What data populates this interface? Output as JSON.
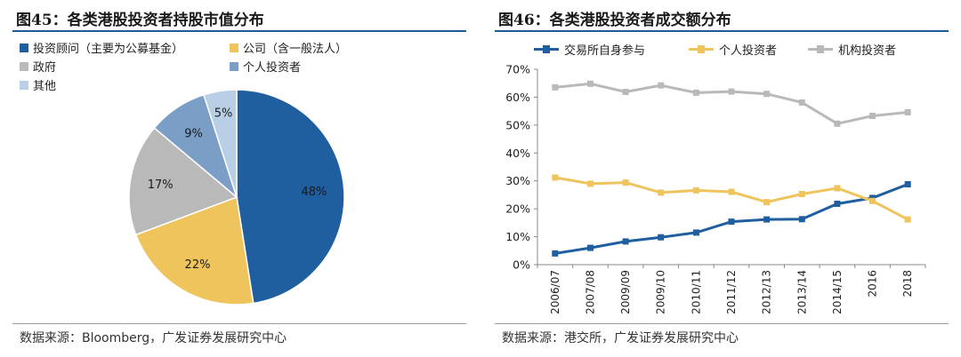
{
  "left": {
    "title": "图45：各类港股投资者持股市值分布",
    "source": "数据来源：Bloomberg，广发证券发展研究中心",
    "chart_data": {
      "type": "pie",
      "title": "各类港股投资者持股市值分布",
      "categories": [
        "投资顾问（主要为公募基金）",
        "公司（含一般法人）",
        "政府",
        "个人投资者",
        "其他"
      ],
      "values": [
        48,
        22,
        17,
        9,
        5
      ],
      "labels": [
        "48%",
        "22%",
        "17%",
        "9%",
        "5%"
      ],
      "colors": [
        "#1f5fa0",
        "#efc45d",
        "#b9b9b9",
        "#7b9ec7",
        "#b9cfe6"
      ],
      "legend": "top"
    }
  },
  "right": {
    "title": "图46：各类港股投资者成交额分布",
    "source": "数据来源：港交所，广发证券发展研究中心",
    "chart_data": {
      "type": "line",
      "title": "各类港股投资者成交额分布",
      "categories": [
        "2006/07",
        "2007/08",
        "2009/09",
        "2009/10",
        "2010/11",
        "2011/12",
        "2012/13",
        "2013/14",
        "2014/15",
        "2016",
        "2018"
      ],
      "ylim": [
        0,
        70
      ],
      "yticks": [
        "0%",
        "10%",
        "20%",
        "30%",
        "40%",
        "50%",
        "60%",
        "70%"
      ],
      "legend": "top",
      "series": [
        {
          "name": "交易所自身参与",
          "color": "#1f5fa0",
          "marker": "square",
          "values": [
            4,
            6,
            8.3,
            9.8,
            11.5,
            15.4,
            16.2,
            16.3,
            21.8,
            23.9,
            28.8
          ]
        },
        {
          "name": "个人投资者",
          "color": "#efc45d",
          "marker": "square",
          "values": [
            31.2,
            29,
            29.4,
            25.8,
            26.6,
            26.1,
            22.4,
            25.3,
            27.4,
            22.8,
            16.2
          ]
        },
        {
          "name": "机构投资者",
          "color": "#b9b9b9",
          "marker": "square",
          "values": [
            63.5,
            64.8,
            61.9,
            64.2,
            61.6,
            62,
            61.2,
            58.1,
            50.5,
            53.3,
            54.6
          ]
        }
      ]
    }
  }
}
